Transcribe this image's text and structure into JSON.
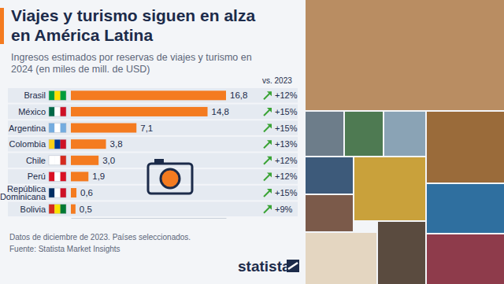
{
  "chart_data": {
    "type": "bar",
    "orientation": "horizontal",
    "title": "Viajes y turismo siguen en alza en América Latina",
    "subtitle": "Ingresos estimados por reservas de viajes y turismo en 2024 (en miles de mill. de USD)",
    "categories": [
      "Brasil",
      "México",
      "Argentina",
      "Colombia",
      "Chile",
      "Perú",
      "República Dominicana",
      "Bolivia"
    ],
    "values": [
      16.8,
      14.8,
      7.1,
      3.8,
      3.0,
      1.9,
      0.6,
      0.5
    ],
    "value_labels": [
      "16,8",
      "14,8",
      "7,1",
      "3,8",
      "3,0",
      "1,9",
      "0,6",
      "0,5"
    ],
    "color": "#f47b20",
    "data_labels": true,
    "xlim": [
      0,
      16.8
    ],
    "tick_labels": false,
    "grid": false,
    "change_title": "vs. 2023",
    "change_values": [
      12,
      15,
      15,
      13,
      12,
      12,
      15,
      9
    ],
    "change_labels": [
      "+12%",
      "+15%",
      "+15%",
      "+13%",
      "+12%",
      "+12%",
      "+15%",
      "+9%"
    ],
    "notes": [
      "Datos de diciembre de 2023. Países seleccionados.",
      "Fuente: Statista Market Insights"
    ],
    "logo": "statista"
  }
}
